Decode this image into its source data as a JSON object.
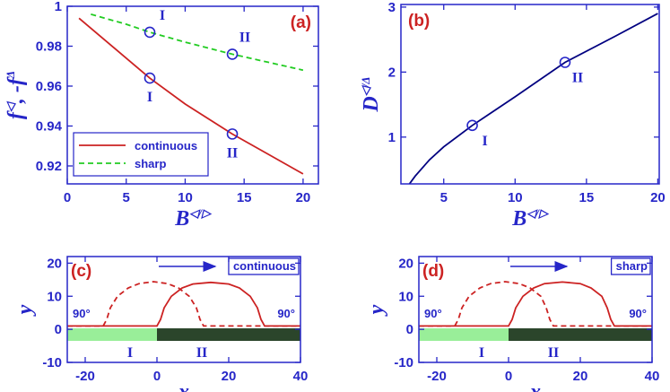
{
  "chart_data": [
    {
      "type": "line",
      "panel_label": "(a)",
      "xlabel": [
        "B",
        "◁/▷"
      ],
      "ylabel": [
        "f",
        "◁",
        ", -f",
        "Δ"
      ],
      "xlim": [
        0,
        21.3
      ],
      "ylim": [
        0.911,
        1
      ],
      "xticks": [
        0,
        5,
        10,
        15,
        20
      ],
      "yticks": [
        0.92,
        0.94,
        0.96,
        0.98,
        1
      ],
      "legend": "lower left",
      "series": [
        {
          "name": "continuous",
          "color": "#cc2222",
          "linestyle": "solid",
          "x": [
            1,
            3,
            5,
            7,
            10,
            14,
            17,
            20
          ],
          "values": [
            0.994,
            0.984,
            0.974,
            0.964,
            0.951,
            0.936,
            0.926,
            0.916
          ],
          "points": [
            {
              "x": 7,
              "y": 0.964,
              "label": "I"
            },
            {
              "x": 14,
              "y": 0.936,
              "label": "II"
            }
          ]
        },
        {
          "name": "sharp",
          "color": "#22cc22",
          "linestyle": "dashed",
          "x": [
            2,
            5,
            7,
            10,
            14,
            17,
            20
          ],
          "values": [
            0.996,
            0.991,
            0.987,
            0.982,
            0.976,
            0.972,
            0.968
          ],
          "points": [
            {
              "x": 7,
              "y": 0.987,
              "label": "I"
            },
            {
              "x": 14,
              "y": 0.976,
              "label": "II"
            }
          ]
        }
      ]
    },
    {
      "type": "line",
      "panel_label": "(b)",
      "xlabel": [
        "B",
        "◁/▷"
      ],
      "ylabel": [
        "D",
        "◁/Δ"
      ],
      "xlim": [
        2,
        20.1
      ],
      "ylim": [
        0.28,
        3.04
      ],
      "xticks": [
        5,
        10,
        15,
        20
      ],
      "yticks": [
        1,
        2,
        3
      ],
      "series": [
        {
          "color": "#000080",
          "linestyle": "solid",
          "x": [
            2.6,
            3,
            4,
            5,
            7,
            10,
            13.5,
            17,
            20
          ],
          "values": [
            0.28,
            0.4,
            0.65,
            0.85,
            1.18,
            1.62,
            2.15,
            2.55,
            2.9
          ],
          "points": [
            {
              "x": 7,
              "y": 1.18,
              "label": "I"
            },
            {
              "x": 13.5,
              "y": 2.15,
              "label": "II"
            }
          ]
        }
      ]
    },
    {
      "type": "profile",
      "panel_label": "(c)",
      "xlabel": [
        "x"
      ],
      "ylabel": [
        "y"
      ],
      "annotation": "continuous",
      "angle_labels": [
        "90°",
        "90°"
      ],
      "xlim": [
        -25,
        40
      ],
      "ylim": [
        -10,
        22
      ],
      "xticks": [
        -20,
        0,
        20,
        40
      ],
      "yticks": [
        -10,
        0,
        10,
        20
      ],
      "bands": [
        {
          "from": -25,
          "to": 0,
          "label": "I",
          "color": "#99ee99"
        },
        {
          "from": 0,
          "to": 40,
          "label": "II",
          "color": "#2b452b"
        }
      ],
      "series": [
        {
          "color": "#cc2222",
          "linestyle": "solid",
          "x": [
            -25,
            0,
            1,
            2,
            4,
            7,
            10,
            15,
            20,
            23,
            26,
            28,
            29,
            30,
            40
          ],
          "values": [
            1,
            1,
            3,
            6.5,
            10,
            12.5,
            13.7,
            14.2,
            13.7,
            12.5,
            10,
            6.5,
            3,
            1,
            1
          ]
        },
        {
          "color": "#cc2222",
          "linestyle": "dashed",
          "x": [
            -25,
            -15,
            -14,
            -13,
            -11,
            -8,
            -5,
            -1,
            3,
            6,
            9,
            11,
            12,
            13,
            40
          ],
          "values": [
            1,
            1,
            3,
            6.5,
            10,
            12.5,
            13.8,
            14.4,
            13.8,
            12.5,
            10,
            6.5,
            3,
            1,
            1
          ]
        }
      ]
    },
    {
      "type": "profile",
      "panel_label": "(d)",
      "xlabel": [
        "x"
      ],
      "ylabel": [
        "y"
      ],
      "annotation": "sharp",
      "angle_labels": [
        "90°",
        "90°"
      ],
      "xlim": [
        -25,
        40
      ],
      "ylim": [
        -10,
        22
      ],
      "xticks": [
        -20,
        0,
        20,
        40
      ],
      "yticks": [
        -10,
        0,
        10,
        20
      ],
      "bands": [
        {
          "from": -25,
          "to": 0,
          "label": "I",
          "color": "#99ee99"
        },
        {
          "from": 0,
          "to": 40,
          "label": "II",
          "color": "#2b452b"
        }
      ],
      "series": [
        {
          "color": "#cc2222",
          "linestyle": "solid",
          "x": [
            -25,
            0,
            1,
            2,
            4,
            7,
            10,
            15,
            20,
            23,
            26,
            27.5,
            28.5,
            29.5,
            40
          ],
          "values": [
            1,
            1,
            3,
            6.5,
            10,
            12.5,
            13.8,
            14.3,
            13.8,
            12.5,
            10,
            6.5,
            3,
            1,
            1
          ]
        },
        {
          "color": "#cc2222",
          "linestyle": "dashed",
          "x": [
            -25,
            -15,
            -14,
            -13,
            -11,
            -8,
            -5,
            -1,
            3,
            6,
            9,
            10.5,
            11.5,
            12.5,
            40
          ],
          "values": [
            1,
            1,
            3,
            6.5,
            10,
            12.5,
            13.8,
            14.4,
            13.8,
            12.5,
            10,
            6.5,
            3,
            1,
            1
          ]
        }
      ]
    }
  ]
}
